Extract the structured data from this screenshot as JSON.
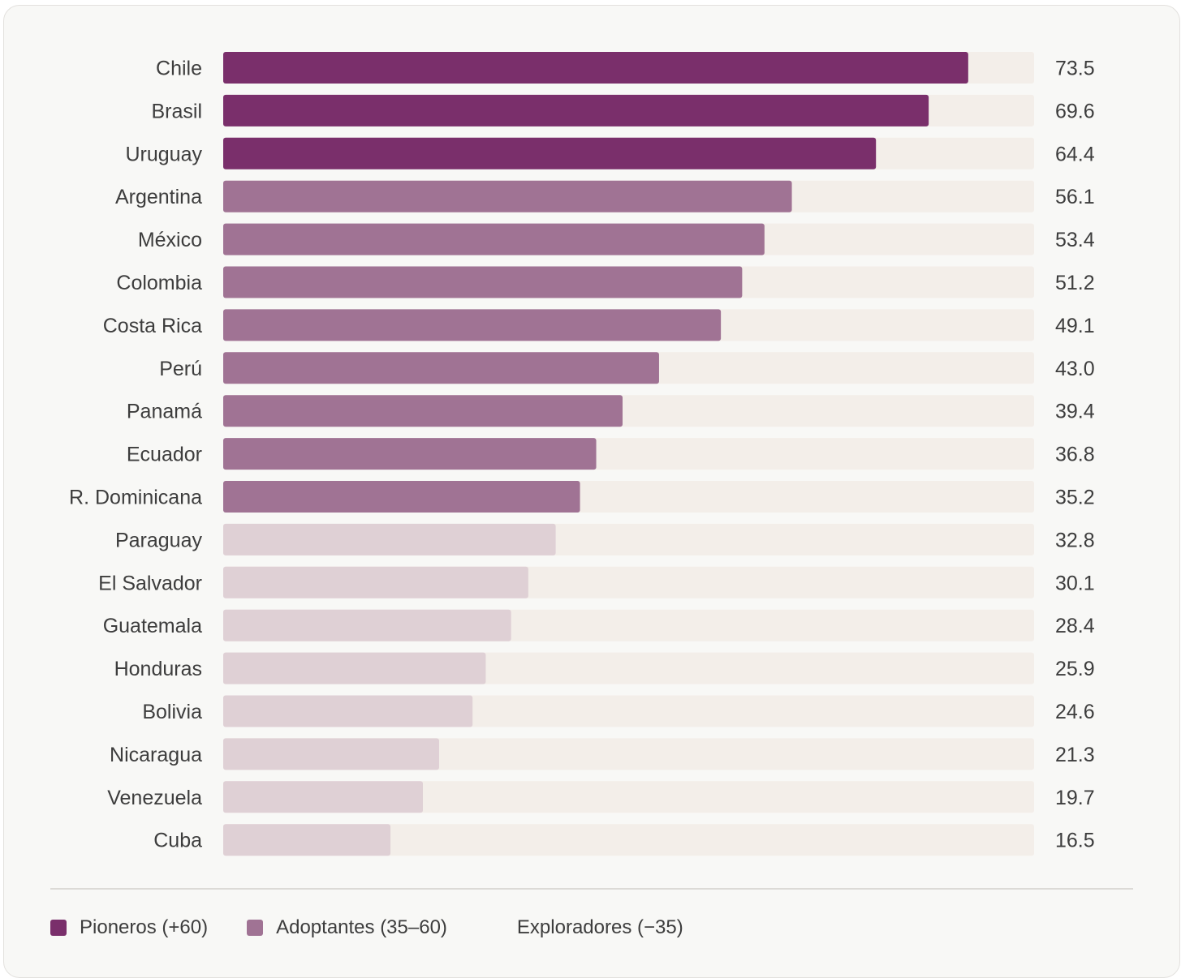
{
  "chart_data": {
    "type": "bar",
    "orientation": "horizontal",
    "categories": [
      "Chile",
      "Brasil",
      "Uruguay",
      "Argentina",
      "México",
      "Colombia",
      "Costa Rica",
      "Perú",
      "Panamá",
      "Ecuador",
      "R. Dominicana",
      "Paraguay",
      "El Salvador",
      "Guatemala",
      "Honduras",
      "Bolivia",
      "Nicaragua",
      "Venezuela",
      "Cuba"
    ],
    "values": [
      73.5,
      69.6,
      64.4,
      56.1,
      53.4,
      51.2,
      49.1,
      43.0,
      39.4,
      36.8,
      35.2,
      32.8,
      30.1,
      28.4,
      25.9,
      24.6,
      21.3,
      19.7,
      16.5
    ],
    "value_labels": [
      "73.5",
      "69.6",
      "64.4",
      "56.1",
      "53.4",
      "51.2",
      "49.1",
      "43.0",
      "39.4",
      "36.8",
      "35.2",
      "32.8",
      "30.1",
      "28.4",
      "25.9",
      "24.6",
      "21.3",
      "19.7",
      "16.5"
    ],
    "xlim": [
      0,
      80
    ],
    "grid": false,
    "legend_position": "bottom-left",
    "legend": [
      {
        "label": "Pioneros (+60)",
        "color": "#7a2f6b",
        "show_swatch": true
      },
      {
        "label": "Adoptantes (35–60)",
        "color": "#a07394",
        "show_swatch": true
      },
      {
        "label": "Exploradores (−35)",
        "color": "#dfd0d5",
        "show_swatch": false
      }
    ],
    "thresholds": {
      "high": 60,
      "mid": 35
    },
    "colors": {
      "high": "#7a2f6b",
      "mid": "#a07394",
      "low": "#dfd0d5",
      "track": "#f3eee9",
      "divider": "#dcdad6",
      "card_bg": "#f8f8f6"
    }
  }
}
